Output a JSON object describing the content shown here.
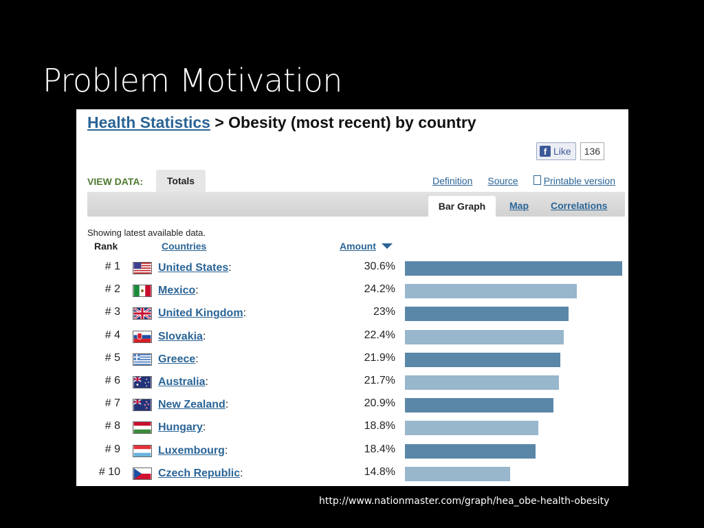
{
  "slide": {
    "title": "Problem Motivation",
    "url": "http://www.nationmaster.com/graph/hea_obe-health-obesity"
  },
  "page": {
    "breadcrumb_link": "Health Statistics",
    "heading": " > Obesity (most recent) by country",
    "like_label": "Like",
    "like_count": "136",
    "view_data_label": "VIEW DATA:",
    "totals_tab": "Totals",
    "links": [
      "Definition",
      "Source",
      "Printable version"
    ],
    "sub_tabs": {
      "bar_graph": "Bar Graph",
      "map": "Map",
      "correlations": "Correlations"
    },
    "showing": "Showing latest available data.",
    "col_rank": "Rank",
    "col_countries": "Countries",
    "col_amount": "Amount",
    "colors": {
      "bar_dark": "#5a87a8",
      "bar_light": "#98b6cc",
      "link": "#2a6496"
    }
  },
  "chart_data": {
    "type": "bar",
    "categories": [
      "United States",
      "Mexico",
      "United Kingdom",
      "Slovakia",
      "Greece",
      "Australia",
      "New Zealand",
      "Hungary",
      "Luxembourg",
      "Czech Republic"
    ],
    "ranks": [
      "# 1",
      "# 2",
      "# 3",
      "# 4",
      "# 5",
      "# 6",
      "# 7",
      "# 8",
      "# 9",
      "# 10"
    ],
    "labels": [
      "30.6%",
      "24.2%",
      "23%",
      "22.4%",
      "21.9%",
      "21.7%",
      "20.9%",
      "18.8%",
      "18.4%",
      "14.8%"
    ],
    "values": [
      30.6,
      24.2,
      23,
      22.4,
      21.9,
      21.7,
      20.9,
      18.8,
      18.4,
      14.8
    ],
    "flags": [
      "us-flag-icon",
      "mexico-flag-icon",
      "uk-flag-icon",
      "slovakia-flag-icon",
      "greece-flag-icon",
      "australia-flag-icon",
      "new-zealand-flag-icon",
      "hungary-flag-icon",
      "luxembourg-flag-icon",
      "czech-flag-icon"
    ],
    "xlim": [
      0,
      30.6
    ]
  }
}
